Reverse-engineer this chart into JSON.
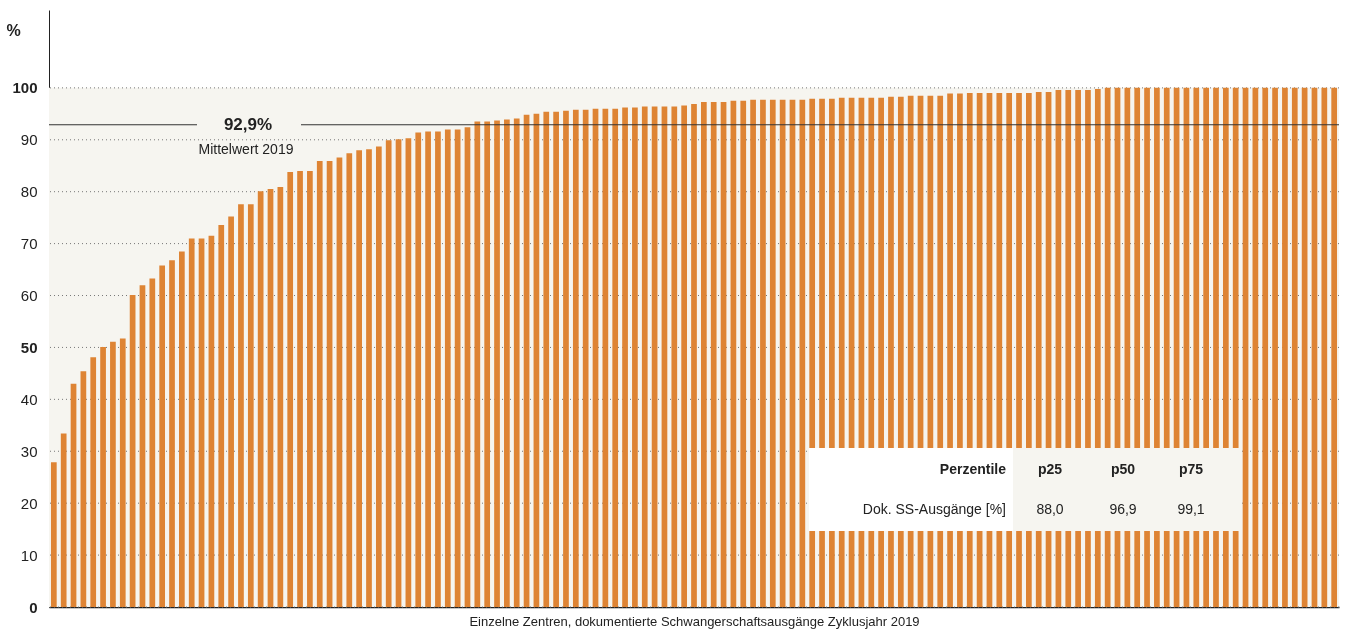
{
  "chart_data": {
    "type": "bar",
    "xlabel": "Einzelne Zentren, dokumentierte Schwangerschaftsausgänge Zyklusjahr 2019",
    "ylabel": "%",
    "categories": [
      null,
      null,
      null,
      null,
      null,
      null,
      null,
      null,
      null,
      null,
      null,
      null,
      null,
      null,
      null,
      null,
      null,
      null,
      null,
      null,
      null,
      null,
      null,
      null,
      null,
      null,
      null,
      null,
      null,
      null,
      null,
      null,
      null,
      null,
      null,
      null,
      null,
      null,
      null,
      null,
      null,
      null,
      null,
      null,
      null,
      null,
      null,
      null,
      null,
      null,
      null,
      null,
      null,
      null,
      null,
      null,
      null,
      null,
      null,
      null,
      null,
      null,
      null,
      null,
      null,
      null,
      null,
      null,
      null,
      null,
      null,
      null,
      null,
      null,
      null,
      null,
      null,
      null,
      null,
      null,
      null,
      null,
      null,
      null,
      null,
      null,
      null,
      null,
      null,
      null,
      null,
      null,
      null,
      null,
      null,
      null,
      null,
      null,
      null,
      null,
      null,
      null,
      null,
      null,
      null,
      null,
      null,
      null,
      null,
      null,
      null,
      null,
      null,
      null,
      null,
      null,
      null,
      null,
      null,
      null,
      null,
      null,
      null,
      null,
      null,
      null,
      null,
      null,
      null,
      null,
      null
    ],
    "values": [
      27.9,
      33.4,
      43.0,
      45.4,
      48.1,
      50.1,
      51.1,
      51.7,
      60.1,
      62.0,
      63.3,
      65.8,
      66.8,
      68.5,
      71.0,
      71.0,
      71.5,
      73.6,
      75.2,
      77.6,
      77.6,
      80.1,
      80.5,
      80.9,
      83.8,
      84.0,
      84.0,
      85.9,
      85.9,
      86.6,
      87.4,
      88.0,
      88.2,
      88.7,
      89.9,
      90.1,
      90.3,
      91.4,
      91.6,
      91.6,
      92.0,
      92.0,
      92.4,
      93.5,
      93.5,
      93.7,
      93.9,
      94.1,
      94.8,
      95.0,
      95.4,
      95.4,
      95.6,
      95.8,
      95.8,
      96.0,
      96.0,
      96.0,
      96.2,
      96.2,
      96.4,
      96.4,
      96.4,
      96.4,
      96.6,
      96.9,
      97.3,
      97.3,
      97.3,
      97.5,
      97.5,
      97.7,
      97.7,
      97.7,
      97.7,
      97.7,
      97.7,
      97.9,
      97.9,
      97.9,
      98.1,
      98.1,
      98.1,
      98.1,
      98.1,
      98.3,
      98.3,
      98.5,
      98.5,
      98.5,
      98.5,
      98.9,
      98.9,
      99.0,
      99.0,
      99.0,
      99.0,
      99.0,
      99.0,
      99.0,
      99.2,
      99.2,
      99.6,
      99.6,
      99.6,
      99.6,
      99.8,
      100,
      100,
      100,
      100,
      100,
      100,
      100,
      100,
      100,
      100,
      100,
      100,
      100,
      100,
      100,
      100,
      100,
      100,
      100,
      100,
      100,
      100,
      100,
      100
    ],
    "color": "#de8434",
    "ylim": [
      0,
      115
    ],
    "yticks": [
      0,
      10,
      20,
      30,
      40,
      50,
      60,
      70,
      80,
      90,
      100
    ],
    "grid": "y",
    "tick_labels": "y",
    "ref_lines": [
      {
        "axis": "y",
        "value": 92.9,
        "label": "92,9%",
        "color": "#333333"
      }
    ],
    "bands": [
      {
        "axis": "y",
        "from": 0,
        "to": 100,
        "color": "#f6f5f0"
      }
    ],
    "annotations": [
      "Mittelwert 2019",
      "Perzentile",
      "p25",
      "p50",
      "p75",
      "Dok. SS-Ausgänge [%]",
      "88,0",
      "96,9",
      "99,1"
    ]
  }
}
